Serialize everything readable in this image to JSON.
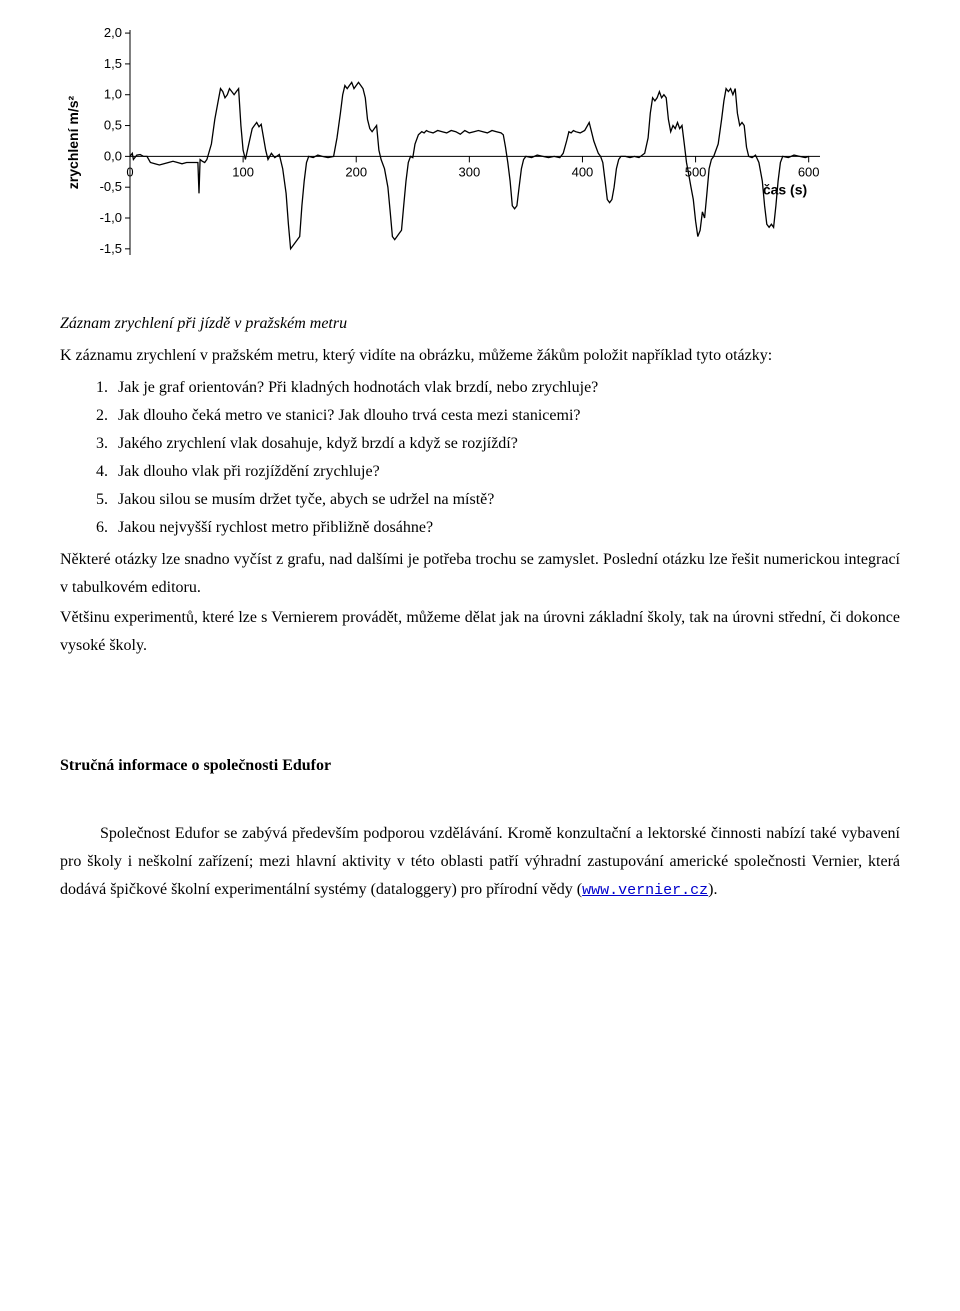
{
  "chart": {
    "type": "line",
    "ylabel": "zrychlení  m/s²",
    "xlabel": "čas (s)",
    "xlim": [
      0,
      610
    ],
    "ylim": [
      -1.6,
      2.05
    ],
    "xticks": [
      0,
      100,
      200,
      300,
      400,
      500,
      600
    ],
    "yticks": [
      -1.5,
      -1.0,
      -0.5,
      0.0,
      0.5,
      1.0,
      1.5,
      2.0
    ],
    "line_color": "#000000",
    "background_color": "#ffffff",
    "grid": false,
    "series": [
      [
        0,
        0.0
      ],
      [
        2,
        0.05
      ],
      [
        3,
        -0.05
      ],
      [
        6,
        0.02
      ],
      [
        9,
        0.03
      ],
      [
        12,
        0.0
      ],
      [
        15,
        0.0
      ],
      [
        18,
        -0.1
      ],
      [
        22,
        -0.12
      ],
      [
        26,
        -0.14
      ],
      [
        30,
        -0.12
      ],
      [
        34,
        -0.1
      ],
      [
        38,
        -0.08
      ],
      [
        42,
        -0.1
      ],
      [
        46,
        -0.12
      ],
      [
        50,
        -0.1
      ],
      [
        60,
        -0.1
      ],
      [
        61,
        -0.6
      ],
      [
        62,
        -0.05
      ],
      [
        64,
        -0.08
      ],
      [
        66,
        -0.1
      ],
      [
        68,
        -0.05
      ],
      [
        72,
        0.2
      ],
      [
        75,
        0.6
      ],
      [
        78,
        0.9
      ],
      [
        80,
        1.1
      ],
      [
        82,
        1.05
      ],
      [
        84,
        0.95
      ],
      [
        86,
        1.0
      ],
      [
        88,
        1.1
      ],
      [
        90,
        1.05
      ],
      [
        92,
        1.0
      ],
      [
        94,
        1.05
      ],
      [
        96,
        1.1
      ],
      [
        98,
        0.5
      ],
      [
        100,
        0.1
      ],
      [
        102,
        -0.05
      ],
      [
        105,
        0.2
      ],
      [
        108,
        0.45
      ],
      [
        110,
        0.5
      ],
      [
        112,
        0.55
      ],
      [
        114,
        0.48
      ],
      [
        116,
        0.52
      ],
      [
        120,
        0.1
      ],
      [
        122,
        -0.05
      ],
      [
        125,
        0.05
      ],
      [
        128,
        -0.02
      ],
      [
        132,
        0.03
      ],
      [
        135,
        -0.2
      ],
      [
        138,
        -0.6
      ],
      [
        140,
        -1.1
      ],
      [
        142,
        -1.5
      ],
      [
        144,
        -1.45
      ],
      [
        146,
        -1.4
      ],
      [
        148,
        -1.35
      ],
      [
        150,
        -1.3
      ],
      [
        152,
        -0.8
      ],
      [
        154,
        -0.4
      ],
      [
        156,
        -0.1
      ],
      [
        158,
        0.0
      ],
      [
        162,
        -0.02
      ],
      [
        166,
        0.02
      ],
      [
        170,
        0.0
      ],
      [
        175,
        -0.02
      ],
      [
        180,
        0.0
      ],
      [
        183,
        0.3
      ],
      [
        186,
        0.7
      ],
      [
        188,
        1.0
      ],
      [
        190,
        1.15
      ],
      [
        192,
        1.1
      ],
      [
        194,
        1.15
      ],
      [
        196,
        1.2
      ],
      [
        198,
        1.1
      ],
      [
        200,
        1.15
      ],
      [
        202,
        1.2
      ],
      [
        204,
        1.15
      ],
      [
        206,
        1.1
      ],
      [
        208,
        0.95
      ],
      [
        210,
        0.6
      ],
      [
        212,
        0.45
      ],
      [
        214,
        0.4
      ],
      [
        216,
        0.45
      ],
      [
        218,
        0.5
      ],
      [
        220,
        0.1
      ],
      [
        222,
        -0.05
      ],
      [
        225,
        -0.2
      ],
      [
        228,
        -0.5
      ],
      [
        230,
        -0.9
      ],
      [
        232,
        -1.3
      ],
      [
        234,
        -1.35
      ],
      [
        236,
        -1.3
      ],
      [
        238,
        -1.25
      ],
      [
        240,
        -1.2
      ],
      [
        242,
        -0.8
      ],
      [
        244,
        -0.4
      ],
      [
        246,
        -0.1
      ],
      [
        248,
        0.0
      ],
      [
        250,
        -0.02
      ],
      [
        252,
        0.2
      ],
      [
        255,
        0.35
      ],
      [
        258,
        0.4
      ],
      [
        260,
        0.38
      ],
      [
        262,
        0.42
      ],
      [
        264,
        0.4
      ],
      [
        268,
        0.38
      ],
      [
        272,
        0.42
      ],
      [
        276,
        0.4
      ],
      [
        280,
        0.38
      ],
      [
        284,
        0.42
      ],
      [
        288,
        0.4
      ],
      [
        292,
        0.36
      ],
      [
        296,
        0.42
      ],
      [
        300,
        0.38
      ],
      [
        304,
        0.4
      ],
      [
        308,
        0.42
      ],
      [
        312,
        0.4
      ],
      [
        316,
        0.38
      ],
      [
        320,
        0.42
      ],
      [
        324,
        0.4
      ],
      [
        328,
        0.38
      ],
      [
        330,
        0.35
      ],
      [
        332,
        0.15
      ],
      [
        334,
        -0.1
      ],
      [
        336,
        -0.4
      ],
      [
        338,
        -0.8
      ],
      [
        340,
        -0.85
      ],
      [
        342,
        -0.8
      ],
      [
        344,
        -0.5
      ],
      [
        346,
        -0.2
      ],
      [
        348,
        -0.05
      ],
      [
        350,
        0.0
      ],
      [
        355,
        -0.02
      ],
      [
        360,
        0.02
      ],
      [
        365,
        0.0
      ],
      [
        370,
        -0.02
      ],
      [
        375,
        0.0
      ],
      [
        380,
        -0.02
      ],
      [
        383,
        0.05
      ],
      [
        386,
        0.25
      ],
      [
        388,
        0.4
      ],
      [
        390,
        0.38
      ],
      [
        392,
        0.42
      ],
      [
        394,
        0.4
      ],
      [
        398,
        0.38
      ],
      [
        402,
        0.42
      ],
      [
        406,
        0.55
      ],
      [
        408,
        0.4
      ],
      [
        410,
        0.25
      ],
      [
        412,
        0.15
      ],
      [
        414,
        0.05
      ],
      [
        416,
        0.0
      ],
      [
        418,
        -0.1
      ],
      [
        420,
        -0.4
      ],
      [
        422,
        -0.7
      ],
      [
        424,
        -0.75
      ],
      [
        426,
        -0.7
      ],
      [
        428,
        -0.5
      ],
      [
        430,
        -0.2
      ],
      [
        432,
        -0.05
      ],
      [
        434,
        0.0
      ],
      [
        438,
        0.0
      ],
      [
        442,
        -0.02
      ],
      [
        446,
        0.0
      ],
      [
        450,
        -0.02
      ],
      [
        455,
        0.05
      ],
      [
        458,
        0.3
      ],
      [
        460,
        0.7
      ],
      [
        462,
        0.95
      ],
      [
        464,
        0.9
      ],
      [
        466,
        0.95
      ],
      [
        468,
        1.05
      ],
      [
        470,
        0.95
      ],
      [
        472,
        1.0
      ],
      [
        474,
        0.95
      ],
      [
        476,
        0.6
      ],
      [
        478,
        0.4
      ],
      [
        480,
        0.5
      ],
      [
        482,
        0.45
      ],
      [
        484,
        0.55
      ],
      [
        486,
        0.45
      ],
      [
        488,
        0.5
      ],
      [
        490,
        0.2
      ],
      [
        492,
        -0.1
      ],
      [
        494,
        -0.3
      ],
      [
        496,
        -0.5
      ],
      [
        498,
        -0.7
      ],
      [
        500,
        -1.05
      ],
      [
        502,
        -1.3
      ],
      [
        504,
        -1.2
      ],
      [
        506,
        -0.9
      ],
      [
        508,
        -1.0
      ],
      [
        510,
        -0.6
      ],
      [
        512,
        -0.2
      ],
      [
        514,
        -0.05
      ],
      [
        516,
        0.0
      ],
      [
        520,
        0.2
      ],
      [
        523,
        0.6
      ],
      [
        525,
        0.9
      ],
      [
        527,
        1.1
      ],
      [
        529,
        1.05
      ],
      [
        531,
        1.1
      ],
      [
        533,
        1.0
      ],
      [
        535,
        1.1
      ],
      [
        537,
        0.7
      ],
      [
        539,
        0.5
      ],
      [
        541,
        0.55
      ],
      [
        543,
        0.5
      ],
      [
        545,
        0.15
      ],
      [
        547,
        0.0
      ],
      [
        550,
        -0.02
      ],
      [
        553,
        0.02
      ],
      [
        556,
        -0.1
      ],
      [
        559,
        -0.4
      ],
      [
        561,
        -0.8
      ],
      [
        563,
        -1.1
      ],
      [
        565,
        -1.15
      ],
      [
        567,
        -1.1
      ],
      [
        569,
        -1.15
      ],
      [
        571,
        -0.8
      ],
      [
        573,
        -0.4
      ],
      [
        575,
        -0.1
      ],
      [
        577,
        0.0
      ],
      [
        582,
        -0.02
      ],
      [
        587,
        0.02
      ],
      [
        592,
        0.0
      ],
      [
        597,
        -0.02
      ],
      [
        600,
        0.0
      ]
    ]
  },
  "title": "Záznam zrychlení při jízdě v pražském metru",
  "lead_paragraph": "K záznamu zrychlení v pražském metru, který vidíte na obrázku, můžeme žákům položit například tyto otázky:",
  "questions": [
    "Jak je graf orientován? Při kladných hodnotách vlak brzdí, nebo zrychluje?",
    "Jak dlouho čeká metro ve stanici? Jak dlouho trvá cesta mezi stanicemi?",
    "Jakého zrychlení vlak dosahuje, když brzdí a když se rozjíždí?",
    "Jak dlouho vlak při rozjíždění zrychluje?",
    "Jakou silou se musím držet tyče, abych se udržel na místě?",
    "Jakou nejvyšší rychlost metro přibližně dosáhne?"
  ],
  "body_p1": "Některé otázky lze snadno vyčíst z grafu, nad dalšími je potřeba trochu se zamyslet. Poslední otázku lze řešit numerickou integrací v tabulkovém editoru.",
  "body_p2": "Většinu experimentů, které lze s Vernierem provádět, můžeme dělat jak na úrovni základní školy, tak na úrovni střední, či dokonce vysoké školy.",
  "section_heading": "Stručná informace o společnosti Edufor",
  "company_p1_a": "Společnost Edufor se zabývá především podporou vzdělávání. Kromě konzultační a lektorské činnosti nabízí také vybavení pro školy i neškolní zařízení; mezi hlavní aktivity v této oblasti patří výhradní zastupování americké společnosti Vernier, která dodává špičkové školní experimentální systémy (dataloggery) pro přírodní vědy (",
  "company_link_text": "www.vernier.cz",
  "company_link_href": "http://www.vernier.cz",
  "company_p1_b": ")."
}
